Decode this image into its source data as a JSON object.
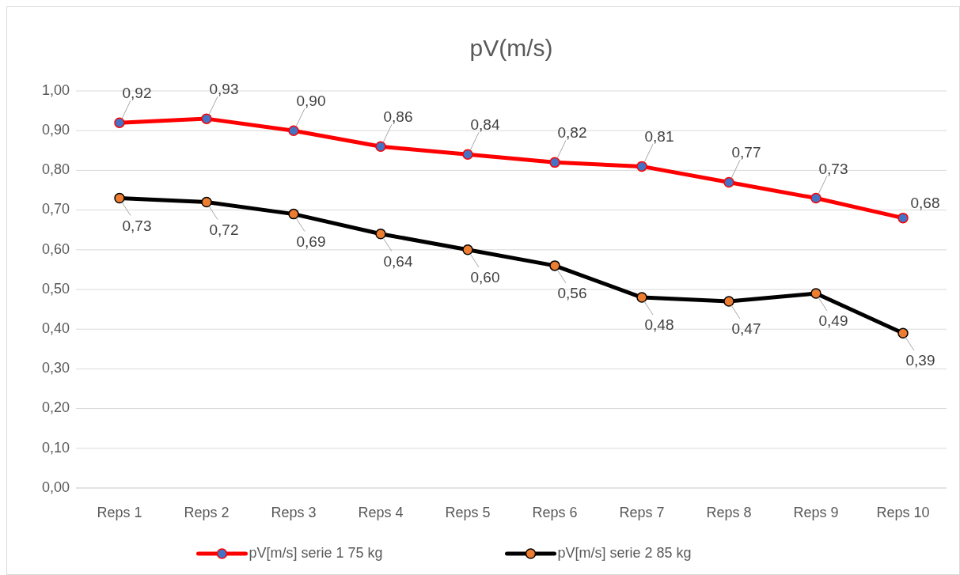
{
  "chart_data": {
    "type": "line",
    "title": "pV(m/s)",
    "categories": [
      "Reps 1",
      "Reps 2",
      "Reps 3",
      "Reps 4",
      "Reps 5",
      "Reps 6",
      "Reps 7",
      "Reps 8",
      "Reps 9",
      "Reps 10"
    ],
    "series": [
      {
        "name": "pV[m/s] serie 1 75 kg",
        "color": "#ff0000",
        "colors": [
          "#4472c4",
          "#4472c4",
          "#4472c4",
          "#4472c4",
          "#4472c4",
          "#4472c4",
          "#4472c4",
          "#4472c4",
          "#4472c4",
          "#4472c4"
        ],
        "values": [
          0.92,
          0.93,
          0.9,
          0.86,
          0.84,
          0.82,
          0.81,
          0.77,
          0.73,
          0.68
        ],
        "value_labels": [
          "0,92",
          "0,93",
          "0,90",
          "0,86",
          "0,84",
          "0,82",
          "0,81",
          "0,77",
          "0,73",
          "0,68"
        ]
      },
      {
        "name": "pV[m/s] serie 2 85 kg",
        "color": "#000000",
        "colors": [
          "#ed7d31",
          "#ed7d31",
          "#ed7d31",
          "#ed7d31",
          "#ed7d31",
          "#ed7d31",
          "#ed7d31",
          "#ed7d31",
          "#ed7d31",
          "#ed7d31"
        ],
        "values": [
          0.73,
          0.72,
          0.69,
          0.64,
          0.6,
          0.56,
          0.48,
          0.47,
          0.49,
          0.39
        ],
        "value_labels": [
          "0,73",
          "0,72",
          "0,69",
          "0,64",
          "0,60",
          "0,56",
          "0,48",
          "0,47",
          "0,49",
          "0,39"
        ]
      }
    ],
    "ylim": [
      0,
      1
    ],
    "yticks": [
      {
        "value": 0,
        "label": "0,00"
      },
      {
        "value": 0.1,
        "label": "0,10"
      },
      {
        "value": 0.2,
        "label": "0,20"
      },
      {
        "value": 0.3,
        "label": "0,30"
      },
      {
        "value": 0.4,
        "label": "0,40"
      },
      {
        "value": 0.5,
        "label": "0,50"
      },
      {
        "value": 0.6,
        "label": "0,60"
      },
      {
        "value": 0.7,
        "label": "0,70"
      },
      {
        "value": 0.8,
        "label": "0,80"
      },
      {
        "value": 0.9,
        "label": "0,90"
      },
      {
        "value": 1,
        "label": "1,00"
      }
    ],
    "grid": "y",
    "legend": "bottom",
    "marker": "circle",
    "line_style": "solid"
  }
}
